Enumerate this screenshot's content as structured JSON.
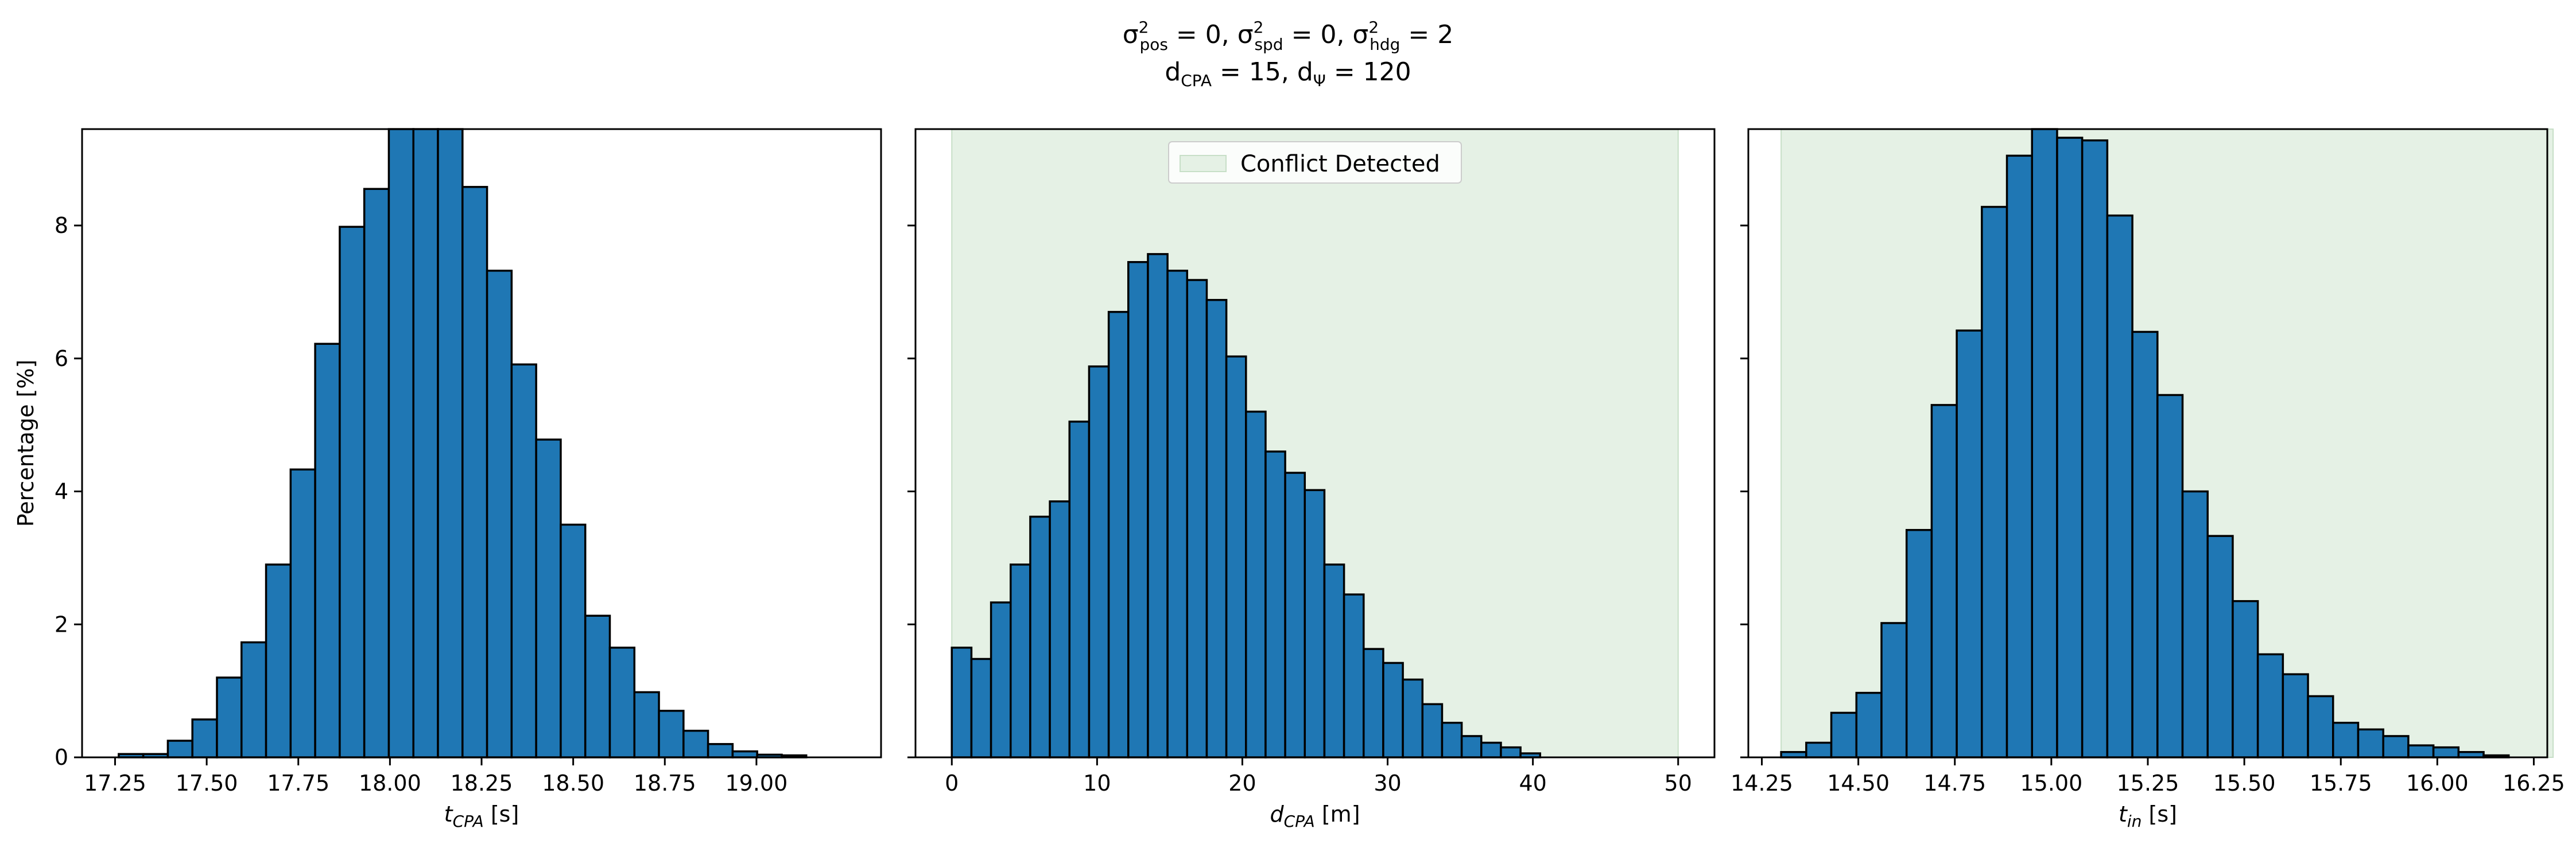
{
  "figure": {
    "title_line1": "σ²pos = 0, σ²spd = 0, σ²hdg = 2",
    "title_line2": "dCPA = 15, dΨ = 120"
  },
  "chart_data": [
    {
      "type": "bar",
      "subtype": "histogram",
      "xlabel": "tCPA [s]",
      "ylabel": "Percentage [%]",
      "xlim": [
        17.16,
        19.34
      ],
      "ylim": [
        0,
        9.45
      ],
      "xticks": [
        "17.25",
        "17.50",
        "17.75",
        "18.00",
        "18.25",
        "18.50",
        "18.75",
        "19.00"
      ],
      "yticks": [
        "0",
        "2",
        "4",
        "6",
        "8"
      ],
      "bar_color": "#1f77b4",
      "bin_edges": [
        17.26,
        17.327,
        17.394,
        17.461,
        17.528,
        17.595,
        17.662,
        17.729,
        17.796,
        17.863,
        17.93,
        17.997,
        18.064,
        18.131,
        18.198,
        18.265,
        18.332,
        18.399,
        18.466,
        18.533,
        18.6,
        18.667,
        18.734,
        18.801,
        18.868,
        18.935,
        19.002,
        19.069,
        19.136
      ],
      "values": [
        0.05,
        0.05,
        0.25,
        0.57,
        1.2,
        1.73,
        2.9,
        4.33,
        6.22,
        7.98,
        8.55,
        9.45,
        9.45,
        9.45,
        8.58,
        7.32,
        5.91,
        4.78,
        3.5,
        2.13,
        1.65,
        0.98,
        0.7,
        0.4,
        0.2,
        0.09,
        0.04,
        0.03
      ],
      "grid": false
    },
    {
      "type": "bar",
      "subtype": "histogram",
      "xlabel": "dCPA [m]",
      "ylabel": "",
      "xlim": [
        -2.5,
        52.5
      ],
      "ylim": [
        0,
        9.45
      ],
      "xticks": [
        "0",
        "10",
        "20",
        "30",
        "40",
        "50"
      ],
      "yticks": [
        "0",
        "2",
        "4",
        "6",
        "8"
      ],
      "bar_color": "#1f77b4",
      "shaded_region": {
        "x": [
          0,
          50
        ],
        "color": "#e5f1e5",
        "label": "Conflict Detected"
      },
      "legend_position": "upper center",
      "bin_edges": [
        0,
        1.35,
        2.7,
        4.05,
        5.4,
        6.75,
        8.1,
        9.45,
        10.8,
        12.15,
        13.5,
        14.85,
        16.2,
        17.55,
        18.9,
        20.25,
        21.6,
        22.95,
        24.3,
        25.65,
        27.0,
        28.35,
        29.7,
        31.05,
        32.4,
        33.75,
        35.1,
        36.45,
        37.8,
        39.15,
        40.5
      ],
      "values": [
        1.65,
        1.48,
        2.33,
        2.9,
        3.62,
        3.85,
        5.05,
        5.88,
        6.7,
        7.45,
        7.57,
        7.32,
        7.18,
        6.88,
        6.03,
        5.2,
        4.6,
        4.28,
        4.02,
        2.9,
        2.45,
        1.63,
        1.42,
        1.17,
        0.8,
        0.52,
        0.32,
        0.22,
        0.15,
        0.06
      ],
      "grid": false
    },
    {
      "type": "bar",
      "subtype": "histogram",
      "xlabel": "tin [s]",
      "ylabel": "",
      "xlim": [
        14.215,
        16.285
      ],
      "ylim": [
        0,
        9.45
      ],
      "xticks": [
        "14.25",
        "14.50",
        "14.75",
        "15.00",
        "15.25",
        "15.50",
        "15.75",
        "16.00",
        "16.25"
      ],
      "yticks": [
        "0",
        "2",
        "4",
        "6",
        "8"
      ],
      "bar_color": "#1f77b4",
      "shaded_region": {
        "x": [
          14.3,
          16.3
        ],
        "color": "#e5f1e5"
      },
      "bin_edges": [
        14.3,
        14.365,
        14.43,
        14.495,
        14.56,
        14.625,
        14.69,
        14.755,
        14.82,
        14.885,
        14.95,
        15.015,
        15.08,
        15.145,
        15.21,
        15.275,
        15.34,
        15.405,
        15.47,
        15.535,
        15.6,
        15.665,
        15.73,
        15.795,
        15.86,
        15.925,
        15.99,
        16.055,
        16.12,
        16.185
      ],
      "values": [
        0.08,
        0.22,
        0.67,
        0.97,
        2.02,
        3.42,
        5.3,
        6.42,
        8.28,
        9.05,
        9.45,
        9.32,
        9.28,
        8.15,
        6.4,
        5.45,
        4.0,
        3.33,
        2.35,
        1.55,
        1.25,
        0.92,
        0.52,
        0.42,
        0.32,
        0.18,
        0.15,
        0.08,
        0.03
      ],
      "grid": false
    }
  ]
}
